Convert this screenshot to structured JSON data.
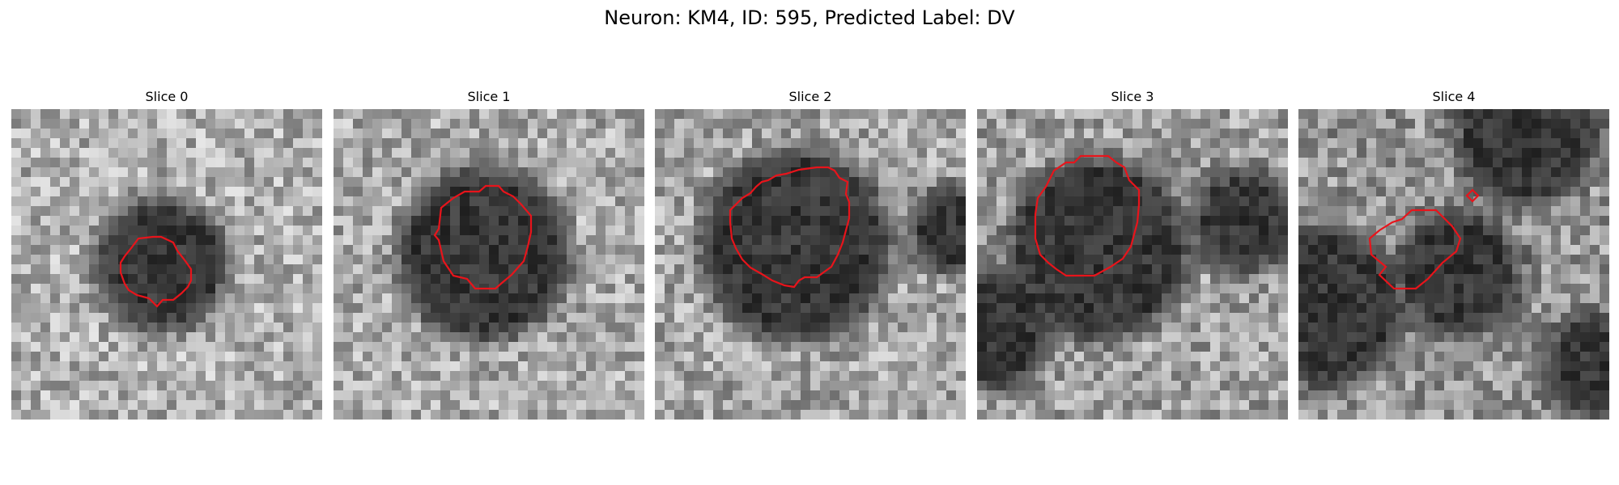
{
  "figure": {
    "title": "Neuron: KM4, ID: 595, Predicted Label: DV",
    "contour_color": "#e8141b"
  },
  "panels": [
    {
      "title": "Slice 0"
    },
    {
      "title": "Slice 1"
    },
    {
      "title": "Slice 2"
    },
    {
      "title": "Slice 3"
    },
    {
      "title": "Slice 4"
    }
  ]
}
